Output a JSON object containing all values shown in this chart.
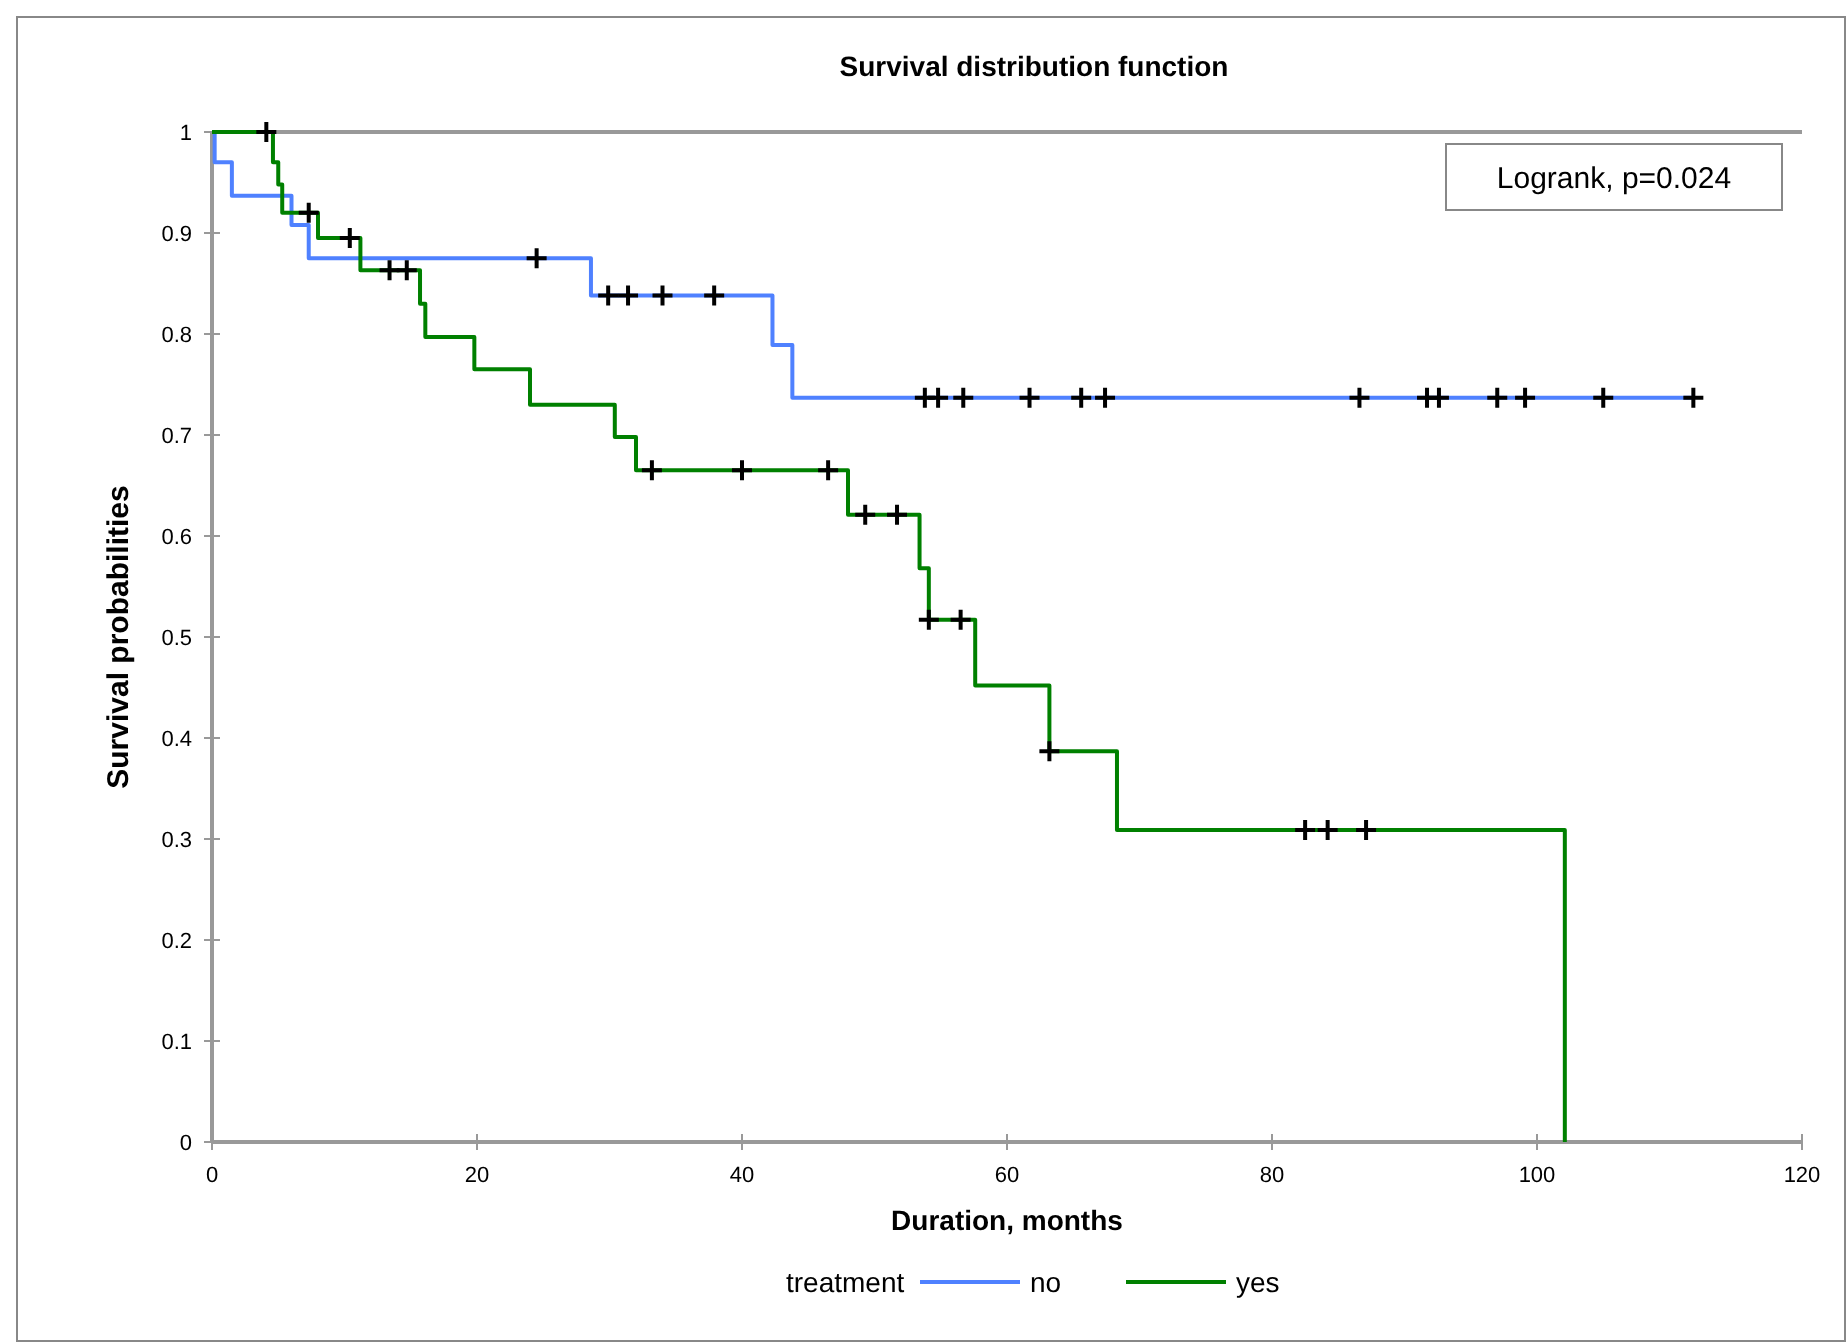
{
  "chart_data": {
    "type": "step",
    "title": "Survival distribution function",
    "xlabel": "Duration, months",
    "ylabel": "Survival probabilities",
    "legend_title": "treatment",
    "legend": "bottom",
    "grid": false,
    "xlim": [
      0,
      120
    ],
    "xticks": [
      0,
      20,
      40,
      60,
      80,
      100,
      120
    ],
    "ylim": [
      0,
      1
    ],
    "yticks": [
      0,
      0.1,
      0.2,
      0.3,
      0.4,
      0.5,
      0.6,
      0.7,
      0.8,
      0.9,
      1
    ],
    "annotations": [
      "Logrank, p=0.024"
    ],
    "series": [
      {
        "name": "no",
        "color": "#4f81ff",
        "marker": "none",
        "x": [
          0,
          0.2,
          1.5,
          6.0,
          7.3,
          28.6,
          42.3,
          43.8,
          111.8
        ],
        "values": [
          1,
          0.97,
          0.937,
          0.908,
          0.875,
          0.838,
          0.789,
          0.737,
          0.737
        ]
      },
      {
        "name": "yes",
        "color": "#008000",
        "marker": "none",
        "x": [
          0,
          4.6,
          5.0,
          5.3,
          8.0,
          11.2,
          15.7,
          16.1,
          19.8,
          24.0,
          30.4,
          32.0,
          48.0,
          53.4,
          54.1,
          57.6,
          63.2,
          68.3,
          102.1
        ],
        "values": [
          1,
          0.97,
          0.948,
          0.92,
          0.895,
          0.863,
          0.83,
          0.797,
          0.765,
          0.73,
          0.698,
          0.665,
          0.621,
          0.568,
          0.517,
          0.452,
          0.387,
          0.309,
          0
        ]
      },
      {
        "type": "scatter",
        "color": "#000000",
        "marker": "cross",
        "x": [
          24.5,
          29.9,
          31.4,
          34,
          37.9,
          53.8,
          54.8,
          56.7,
          61.7,
          65.6,
          67.4,
          86.6,
          91.7,
          92.6,
          97.0,
          99.1,
          105.0,
          111.8
        ],
        "values": [
          0.875,
          0.838,
          0.838,
          0.838,
          0.838,
          0.737,
          0.737,
          0.737,
          0.737,
          0.737,
          0.737,
          0.737,
          0.737,
          0.737,
          0.737,
          0.737,
          0.737,
          0.737
        ]
      },
      {
        "type": "scatter",
        "color": "#000000",
        "marker": "cross",
        "x": [
          4.1,
          7.3,
          10.4,
          13.4,
          14.7,
          33.2,
          40.0,
          46.5,
          49.3,
          51.7,
          54.1,
          56.5,
          63.2,
          82.5,
          84.2,
          87.1
        ],
        "values": [
          1,
          0.92,
          0.895,
          0.863,
          0.863,
          0.665,
          0.665,
          0.665,
          0.621,
          0.621,
          0.517,
          0.517,
          0.387,
          0.309,
          0.309,
          0.309
        ]
      }
    ]
  }
}
